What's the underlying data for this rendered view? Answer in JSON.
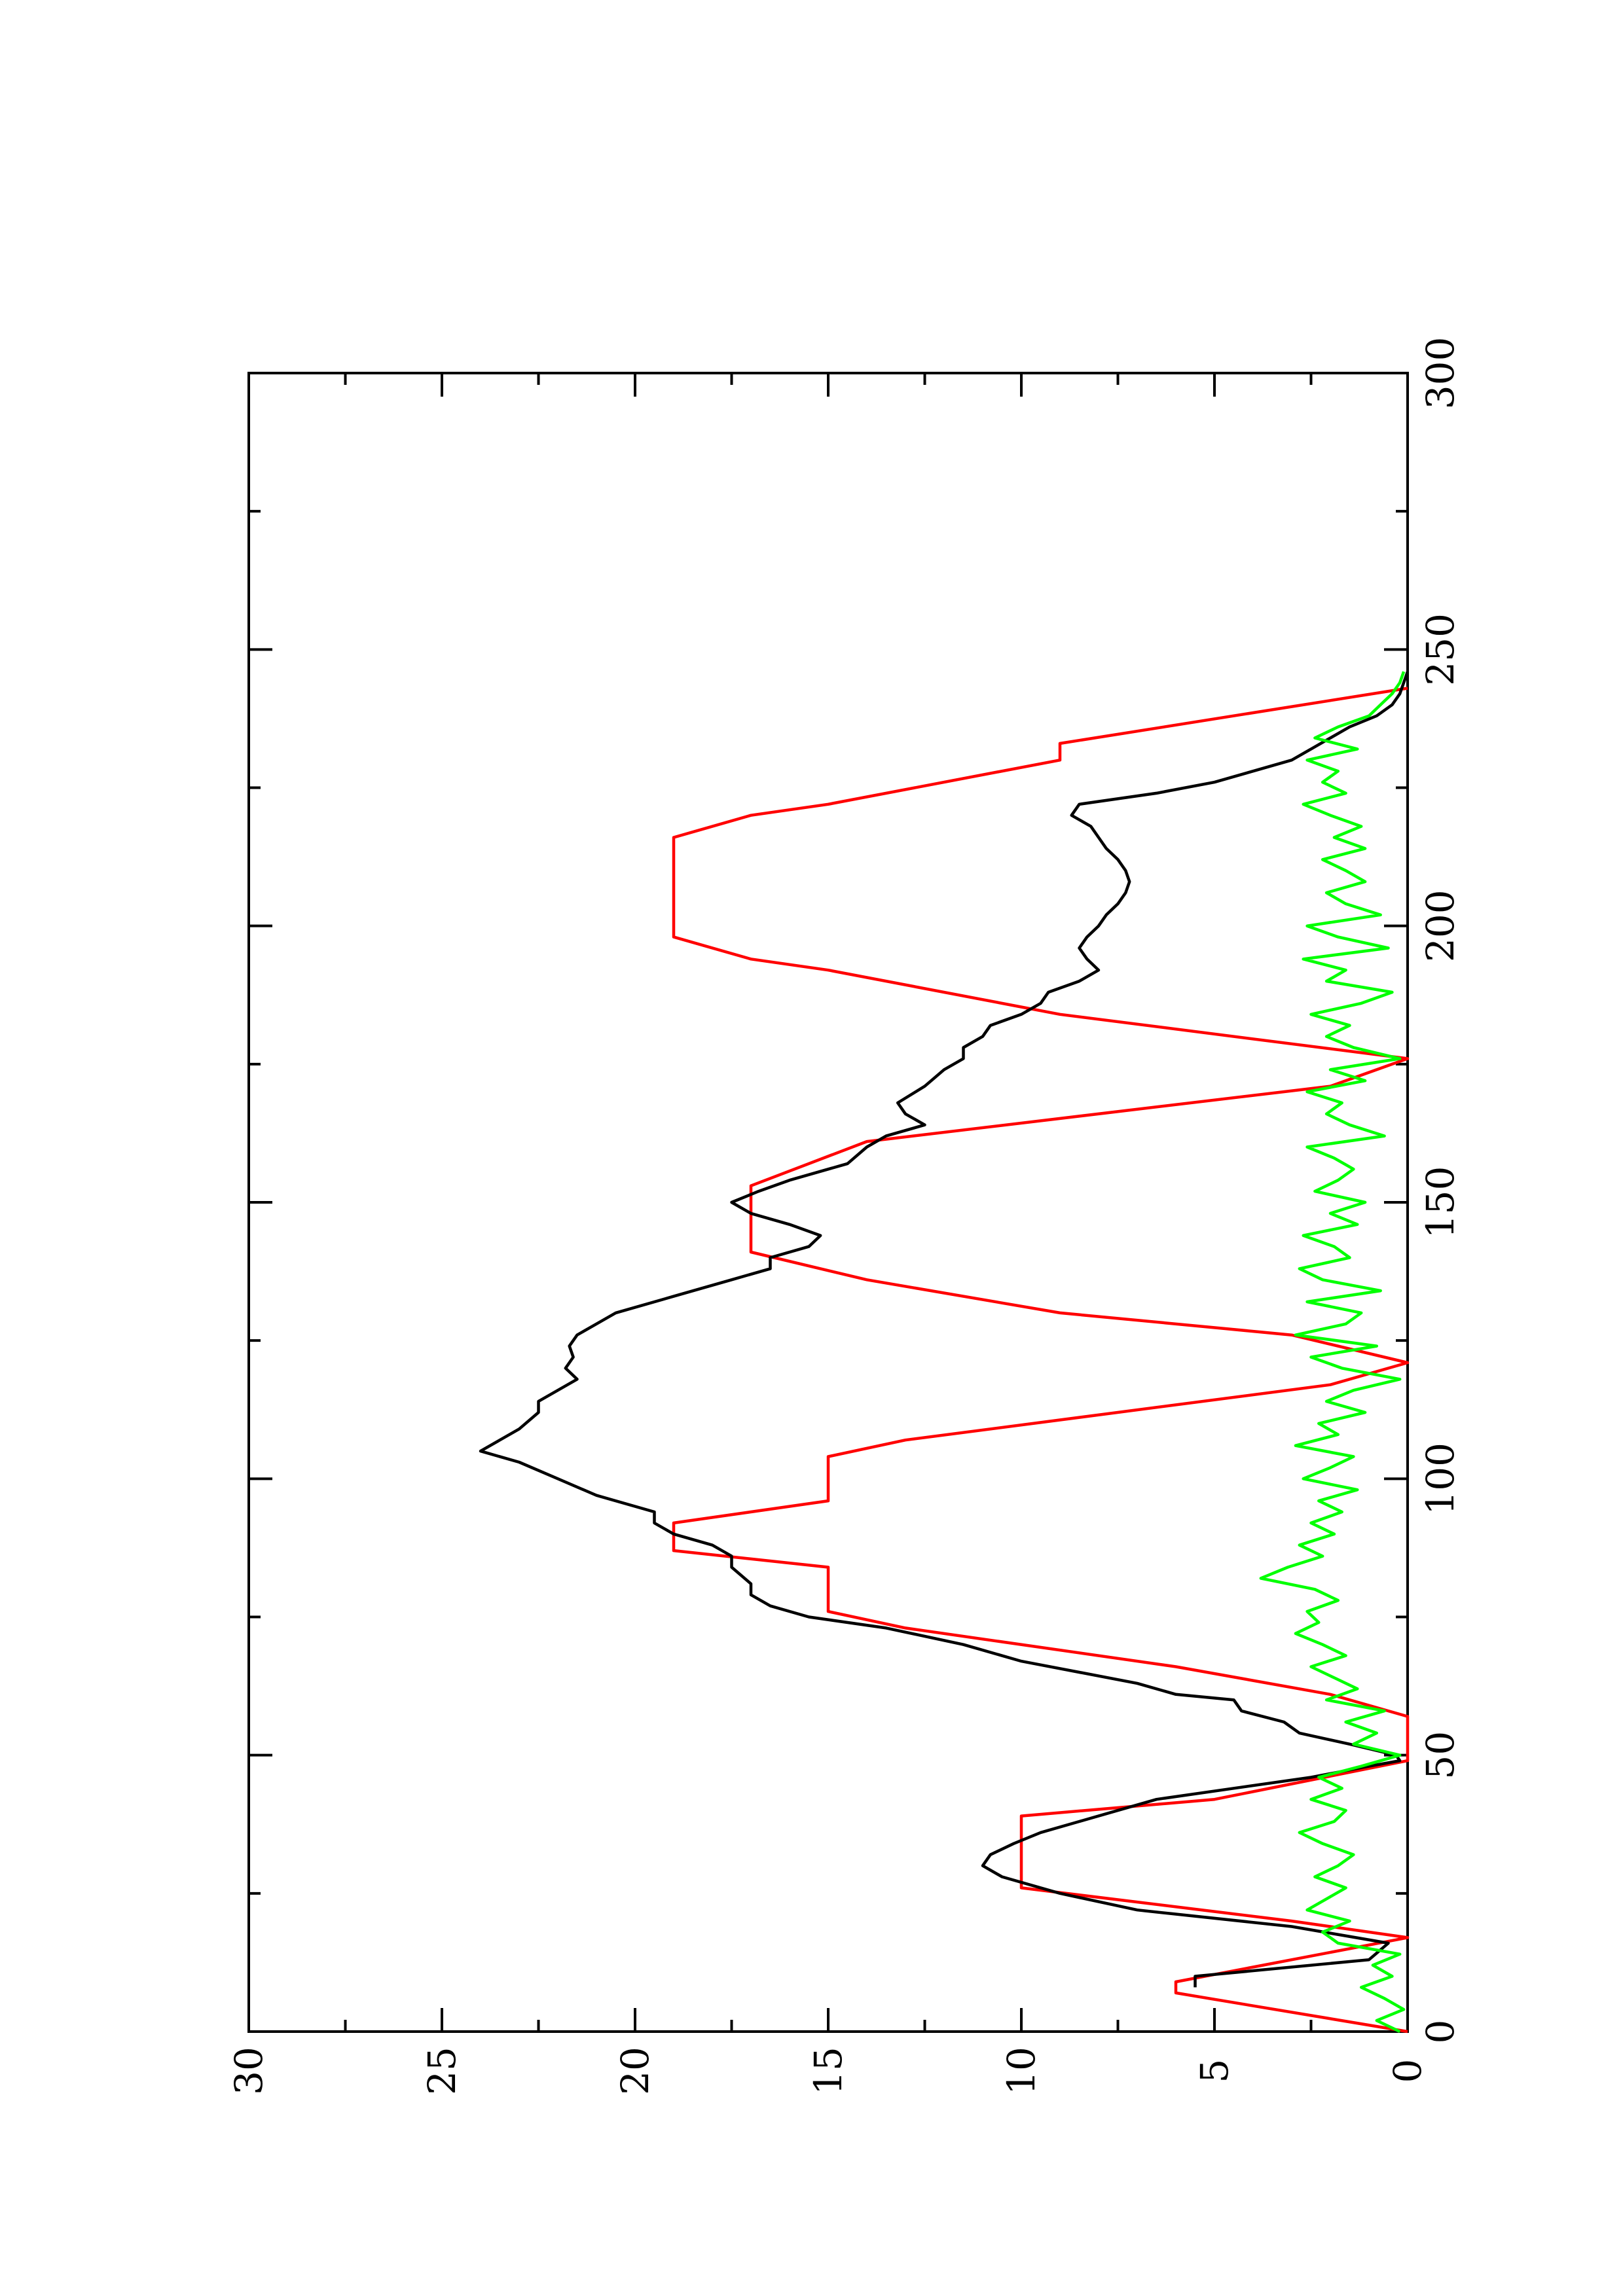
{
  "chart_data": {
    "type": "line",
    "title": "",
    "xlabel": "",
    "ylabel": "",
    "xlim": [
      0,
      300
    ],
    "ylim": [
      0,
      30
    ],
    "x_ticks": [
      "0",
      "50",
      "100",
      "150",
      "200",
      "250",
      "300"
    ],
    "y_ticks": [
      "0",
      "5",
      "10",
      "15",
      "20",
      "25",
      "30"
    ],
    "grid": false,
    "legend": "none",
    "orientation": "rotated 90 degrees counter-clockwise",
    "series": [
      {
        "color": "#ff0000",
        "style": "step-ramp",
        "x": [
          0,
          7,
          9,
          17,
          20,
          26,
          39,
          42,
          49,
          57,
          61,
          66,
          73,
          76,
          84,
          87,
          92,
          96,
          104,
          107,
          117,
          121,
          126,
          130,
          136,
          141,
          153,
          161,
          171,
          176,
          184,
          192,
          194,
          198,
          216,
          220,
          222,
          230,
          233,
          243
        ],
        "y": [
          0,
          6,
          6,
          0,
          3,
          10,
          10,
          5,
          0,
          0,
          2,
          6,
          13,
          15,
          15,
          19,
          19,
          15,
          15,
          13,
          2,
          0,
          3,
          9,
          14,
          17,
          17,
          14,
          2,
          0,
          9,
          15,
          17,
          19,
          19,
          17,
          15,
          9,
          9,
          0
        ]
      },
      {
        "color": "#000000",
        "style": "line",
        "x": [
          8,
          10,
          13,
          16,
          19,
          22,
          25,
          28,
          30,
          32,
          34,
          36,
          38,
          40,
          42,
          44,
          46,
          48,
          49,
          50,
          52,
          54,
          56,
          58,
          60,
          61,
          63,
          65,
          67,
          70,
          73,
          75,
          77,
          79,
          81,
          84,
          86,
          88,
          90,
          92,
          94,
          97,
          100,
          103,
          105,
          107,
          109,
          112,
          114,
          116,
          118,
          120,
          122,
          124,
          126,
          128,
          130,
          133,
          136,
          138,
          140,
          142,
          144,
          146,
          148,
          150,
          152,
          154,
          157,
          160,
          162,
          164,
          166,
          168,
          171,
          174,
          176,
          178,
          180,
          182,
          184,
          186,
          188,
          190,
          192,
          194,
          196,
          198,
          200,
          202,
          204,
          206,
          208,
          210,
          212,
          214,
          216,
          218,
          220,
          222,
          224,
          226,
          228,
          230,
          232,
          234,
          236,
          238,
          240,
          242,
          244,
          246
        ],
        "y": [
          5.5,
          5.5,
          1,
          0.5,
          3,
          7,
          9,
          10.5,
          11,
          10.8,
          10.2,
          9.5,
          8.5,
          7.5,
          6.5,
          4.5,
          2.5,
          1,
          0.2,
          0.3,
          1.5,
          2.8,
          3.2,
          4.3,
          4.5,
          6,
          7,
          8.5,
          10,
          11.5,
          13.5,
          15.5,
          16.5,
          17,
          17,
          17.5,
          17.5,
          18,
          19,
          19.5,
          19.5,
          21,
          22,
          23,
          24,
          23.5,
          23,
          22.5,
          22.5,
          22,
          21.5,
          21.8,
          21.6,
          21.7,
          21.5,
          21,
          20.5,
          19,
          17.5,
          16.5,
          16.5,
          15.5,
          15.2,
          16,
          17,
          17.5,
          16.8,
          16,
          14.5,
          14,
          13.5,
          12.5,
          13,
          13.2,
          12.5,
          12,
          11.5,
          11.5,
          11,
          10.8,
          10,
          9.5,
          9.3,
          8.5,
          8,
          8.3,
          8.5,
          8.3,
          8,
          7.8,
          7.5,
          7.3,
          7.2,
          7.3,
          7.5,
          7.8,
          8,
          8.2,
          8.7,
          8.5,
          6.5,
          5,
          4,
          3,
          2.5,
          2,
          1.5,
          0.8,
          0.4,
          0.2,
          0.1,
          0
        ]
      },
      {
        "color": "#00ff00",
        "style": "noisy-line",
        "x": [
          0,
          2,
          4,
          6,
          8,
          10,
          12,
          14,
          16,
          18,
          20,
          22,
          24,
          26,
          28,
          30,
          32,
          34,
          36,
          38,
          40,
          42,
          44,
          46,
          48,
          50,
          52,
          54,
          56,
          58,
          60,
          62,
          64,
          66,
          68,
          70,
          72,
          74,
          76,
          78,
          80,
          82,
          84,
          86,
          88,
          90,
          92,
          94,
          96,
          98,
          100,
          102,
          104,
          106,
          108,
          110,
          112,
          114,
          116,
          118,
          120,
          122,
          124,
          126,
          128,
          130,
          132,
          134,
          136,
          138,
          140,
          142,
          144,
          146,
          148,
          150,
          152,
          154,
          156,
          158,
          160,
          162,
          164,
          166,
          168,
          170,
          172,
          174,
          176,
          178,
          180,
          182,
          184,
          186,
          188,
          190,
          192,
          194,
          196,
          198,
          200,
          202,
          204,
          206,
          208,
          210,
          212,
          214,
          216,
          218,
          220,
          222,
          224,
          226,
          228,
          230,
          232,
          234,
          236,
          238,
          240,
          242,
          244,
          246
        ],
        "y": [
          0.2,
          0.8,
          0.1,
          0.6,
          1.2,
          0.4,
          0.9,
          0.2,
          1.8,
          2.2,
          1.5,
          2.6,
          2.1,
          1.6,
          2.4,
          1.8,
          1.4,
          2.2,
          2.8,
          1.9,
          1.6,
          2.5,
          1.7,
          2.3,
          1.2,
          0.2,
          1.4,
          0.8,
          1.6,
          0.6,
          2.1,
          1.3,
          1.9,
          2.5,
          1.6,
          2.2,
          2.9,
          2.3,
          2.6,
          1.8,
          2.4,
          3.8,
          3.1,
          2.2,
          2.8,
          1.9,
          2.5,
          1.7,
          2.3,
          1.3,
          2.7,
          2.0,
          1.4,
          2.9,
          1.8,
          2.3,
          1.1,
          2.1,
          1.4,
          0.2,
          1.7,
          2.5,
          0.8,
          2.9,
          1.6,
          1.2,
          2.6,
          0.7,
          2.2,
          2.8,
          1.5,
          1.9,
          2.7,
          1.3,
          2.0,
          1.1,
          2.4,
          1.8,
          1.4,
          1.9,
          2.6,
          0.6,
          1.5,
          2.1,
          1.7,
          2.6,
          1.1,
          2.0,
          0.2,
          1.4,
          2.1,
          1.5,
          2.5,
          1.2,
          0.4,
          2.1,
          1.6,
          2.7,
          0.5,
          1.8,
          2.6,
          0.7,
          1.6,
          2.1,
          1.1,
          1.6,
          2.2,
          1.1,
          1.9,
          1.2,
          2.0,
          2.7,
          1.6,
          2.2,
          1.8,
          2.6,
          1.3,
          2.4,
          1.8,
          1.0,
          0.7,
          0.4,
          0.2,
          0.1
        ]
      }
    ]
  }
}
